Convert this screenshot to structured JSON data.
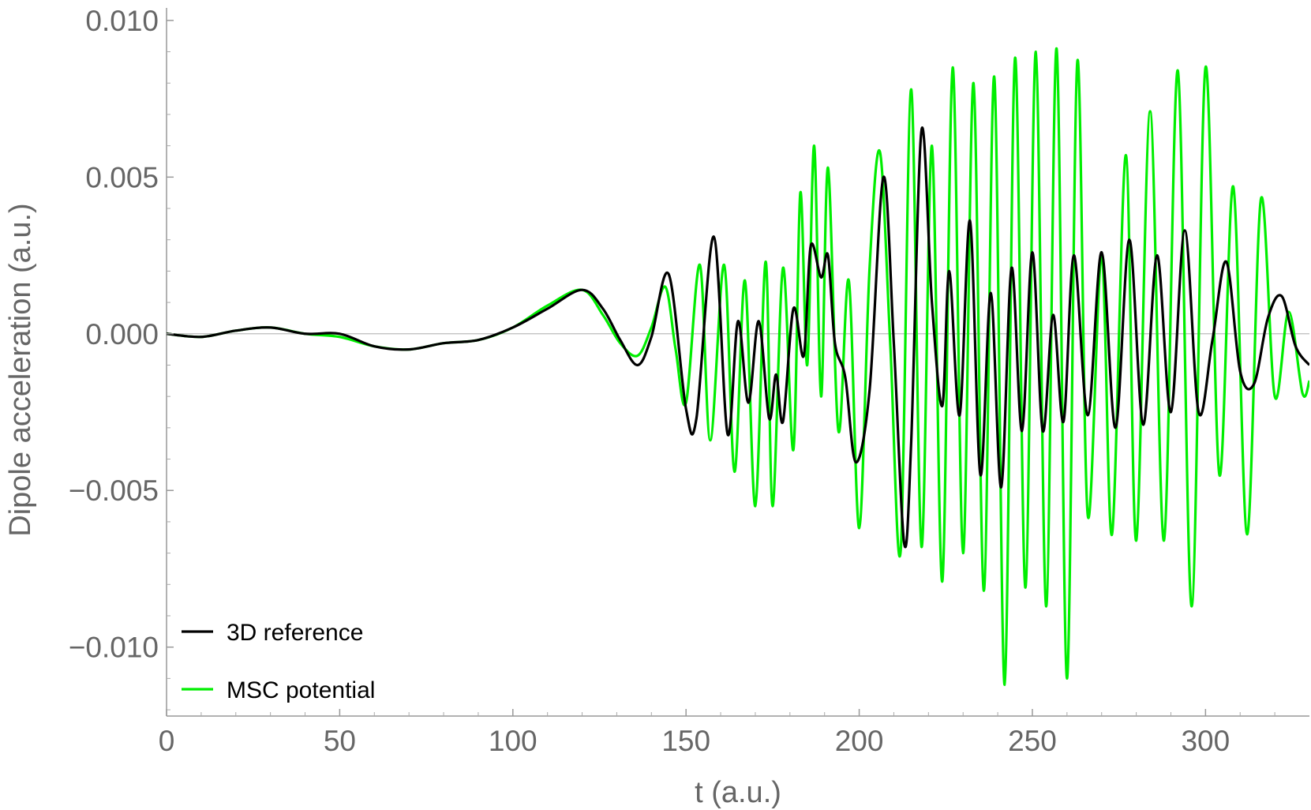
{
  "chart_data": {
    "type": "line",
    "title": "",
    "xlabel": "t (a.u.)",
    "ylabel": "Dipole acceleration (a.u.)",
    "xlim": [
      0,
      330
    ],
    "ylim": [
      -0.0122,
      0.0104
    ],
    "xticks": [
      0,
      50,
      100,
      150,
      200,
      250,
      300
    ],
    "xtick_labels": [
      "0",
      "50",
      "100",
      "150",
      "200",
      "250",
      "300"
    ],
    "yticks": [
      -0.01,
      -0.005,
      0.0,
      0.005,
      0.01
    ],
    "ytick_labels": [
      "−0.010",
      "−0.005",
      "0.000",
      "0.005",
      "0.010"
    ],
    "grid": false,
    "zero_line": true,
    "legend_position": "bottom-left",
    "series": [
      {
        "name": "3D reference",
        "color": "#000000",
        "x": [
          0,
          10,
          20,
          30,
          40,
          50,
          60,
          70,
          80,
          90,
          100,
          110,
          120,
          126,
          131,
          136,
          140,
          145,
          150,
          153,
          158,
          162,
          165,
          168,
          171,
          174,
          176,
          178,
          181,
          184,
          186,
          189,
          191,
          193,
          196,
          199,
          203,
          207,
          210,
          213,
          215,
          218,
          221,
          224,
          226,
          229,
          232,
          235,
          238,
          241,
          244,
          247,
          250,
          253,
          256,
          259,
          262,
          266,
          270,
          274,
          278,
          282,
          286,
          290,
          294,
          298,
          302,
          306,
          310,
          314,
          318,
          322,
          326,
          330
        ],
        "y": [
          0,
          -0.0001,
          0.0001,
          0.0002,
          0,
          0,
          -0.0004,
          -0.0005,
          -0.0003,
          -0.0002,
          0.0002,
          0.0008,
          0.0014,
          0.0008,
          -0.0002,
          -0.001,
          -0.0001,
          0.0019,
          -0.0024,
          -0.0027,
          0.0031,
          -0.0032,
          0.0004,
          -0.0022,
          0.0004,
          -0.0027,
          -0.0013,
          -0.0028,
          0.0008,
          -0.0007,
          0.0028,
          0.0018,
          0.0025,
          -0.0003,
          -0.0014,
          -0.0041,
          -0.0018,
          0.005,
          -0.0003,
          -0.0067,
          -0.0035,
          0.0065,
          0.001,
          -0.0023,
          0.002,
          -0.0026,
          0.0036,
          -0.0045,
          0.0013,
          -0.0049,
          0.0021,
          -0.0031,
          0.0026,
          -0.0031,
          0.0006,
          -0.0028,
          0.0025,
          -0.0026,
          0.0026,
          -0.003,
          0.003,
          -0.0029,
          0.0025,
          -0.0025,
          0.0033,
          -0.0025,
          -0.0002,
          0.0023,
          -0.0012,
          -0.0016,
          0.0005,
          0.0012,
          -0.0004,
          -0.001
        ]
      },
      {
        "name": "MSC potential",
        "color": "#00ee00",
        "x": [
          0,
          10,
          20,
          30,
          40,
          50,
          60,
          70,
          80,
          90,
          100,
          110,
          120,
          126,
          131,
          136,
          140,
          144,
          147,
          150,
          154,
          157,
          161,
          164,
          167,
          170,
          173,
          175,
          178,
          181,
          183,
          185,
          187,
          189,
          191,
          194,
          197,
          200,
          203,
          206,
          209,
          212,
          215,
          218,
          221,
          224,
          227,
          230,
          233,
          236,
          239,
          242,
          245,
          248,
          251,
          254,
          257,
          260,
          263,
          266,
          270,
          273,
          277,
          280,
          284,
          288,
          292,
          296,
          300,
          304,
          308,
          312,
          316,
          320,
          324,
          328,
          330
        ],
        "y": [
          0,
          -0.0001,
          0.0001,
          0.0002,
          0,
          -0.0001,
          -0.0004,
          -0.0005,
          -0.0003,
          -0.0002,
          0.0002,
          0.0009,
          0.0014,
          0.0006,
          -0.0003,
          -0.0007,
          0.0002,
          0.0015,
          -0.0005,
          -0.0022,
          0.0022,
          -0.0034,
          0.0022,
          -0.0044,
          0.0017,
          -0.0055,
          0.0023,
          -0.0055,
          0.0021,
          -0.0037,
          0.0045,
          -0.001,
          0.006,
          -0.002,
          0.0053,
          -0.0031,
          0.0017,
          -0.0062,
          0.0021,
          0.0058,
          -0.0004,
          -0.0069,
          0.0078,
          -0.0068,
          0.006,
          -0.0079,
          0.0085,
          -0.007,
          0.008,
          -0.0082,
          0.0082,
          -0.0112,
          0.0088,
          -0.0081,
          0.009,
          -0.0087,
          0.0091,
          -0.011,
          0.0087,
          -0.0058,
          0.0025,
          -0.0064,
          0.0057,
          -0.0066,
          0.0071,
          -0.0066,
          0.0084,
          -0.0087,
          0.0085,
          -0.0045,
          0.0047,
          -0.0064,
          0.0043,
          -0.002,
          0.0007,
          -0.0019,
          -0.0015
        ]
      }
    ]
  }
}
